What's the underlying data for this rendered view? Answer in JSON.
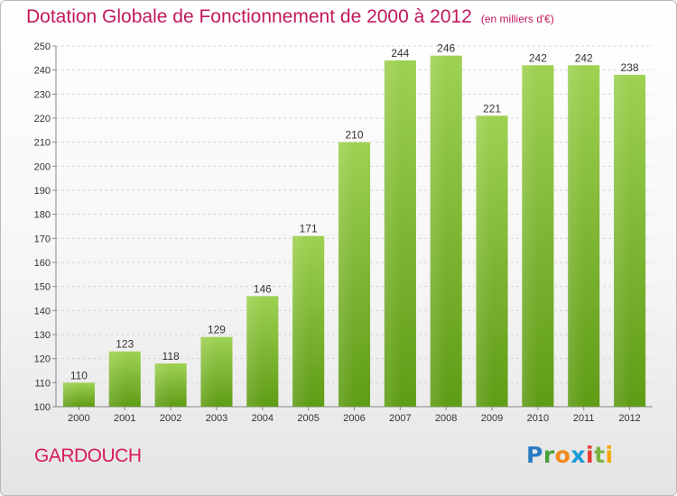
{
  "chart_data": {
    "type": "bar",
    "title": "Dotation Globale de Fonctionnement de 2000 à 2012",
    "subtitle": "(en milliers d'€)",
    "categories": [
      "2000",
      "2001",
      "2002",
      "2003",
      "2004",
      "2005",
      "2006",
      "2007",
      "2008",
      "2009",
      "2010",
      "2011",
      "2012"
    ],
    "values": [
      110,
      123,
      118,
      129,
      146,
      171,
      210,
      244,
      246,
      221,
      242,
      242,
      238
    ],
    "xlabel": "",
    "ylabel": "",
    "ylim": [
      100,
      250
    ],
    "yticks": [
      100,
      110,
      120,
      130,
      140,
      150,
      160,
      170,
      180,
      190,
      200,
      210,
      220,
      230,
      240,
      250
    ],
    "grid": true,
    "bar_color": "#8cc63f"
  },
  "commune": "GARDOUCH",
  "logo": {
    "letters": [
      "P",
      "r",
      "o",
      "x",
      "i",
      "t",
      "i"
    ]
  }
}
